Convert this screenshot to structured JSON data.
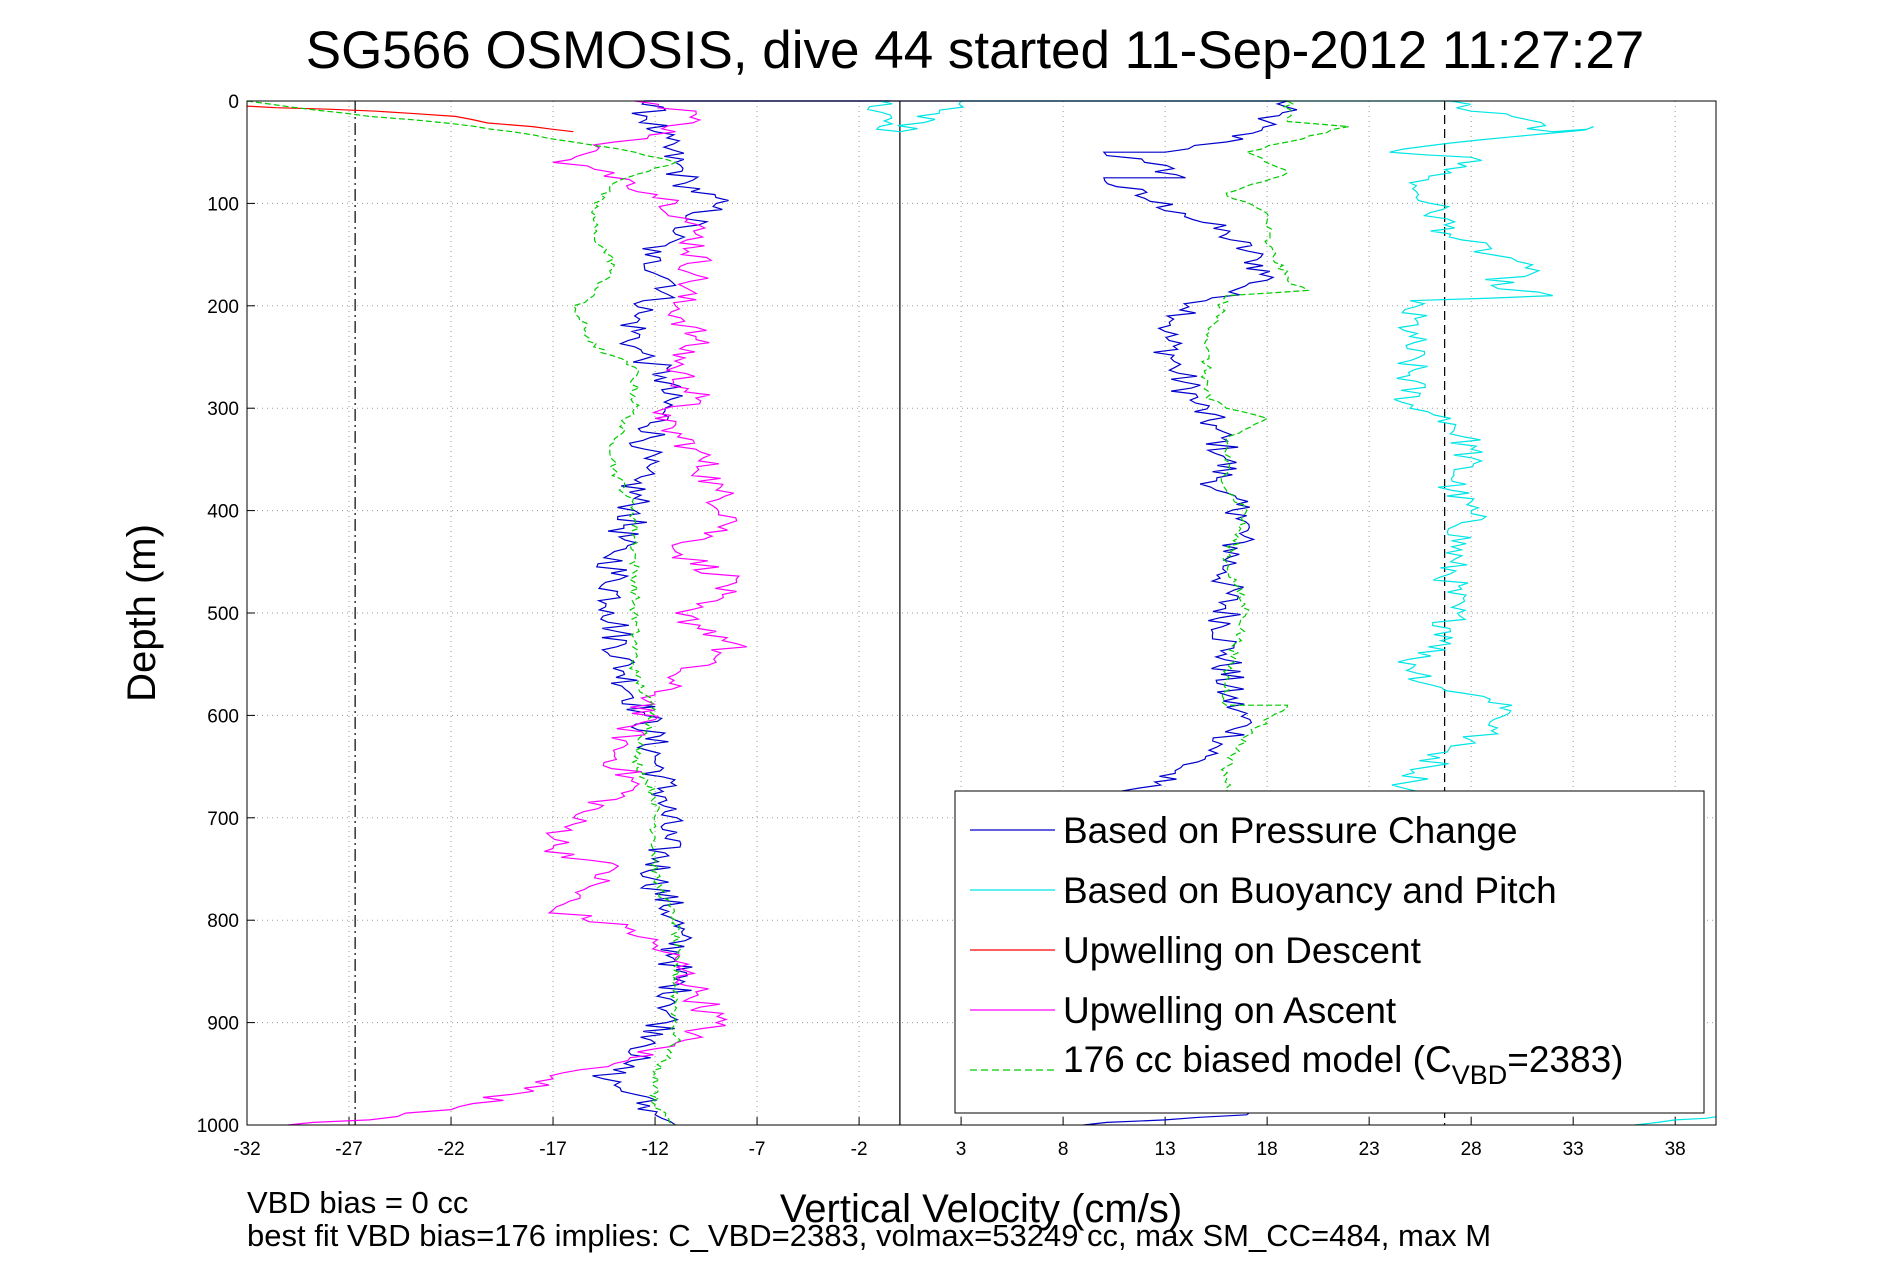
{
  "chart_data": {
    "type": "line",
    "title": "SG566 OSMOSIS, dive 44 started 11-Sep-2012 11:27:27",
    "xlabel": "Vertical Velocity (cm/s)",
    "ylabel": "Depth (m)",
    "xlim": [
      -32,
      40
    ],
    "ylim": [
      0,
      1000
    ],
    "y_reversed": true,
    "grid": true,
    "legend_position": "lower-right",
    "x_ticks": [
      "-32",
      "-27",
      "-22",
      "-17",
      "-12",
      "-7",
      "-2",
      "3",
      "8",
      "13",
      "18",
      "23",
      "28",
      "33",
      "38"
    ],
    "y_ticks": [
      "0",
      "100",
      "200",
      "300",
      "400",
      "500",
      "600",
      "700",
      "800",
      "900",
      "1000"
    ],
    "reference_lines": [
      {
        "x": -26.7,
        "style": "dash-dot",
        "color": "#000000"
      },
      {
        "x": 0,
        "style": "solid",
        "color": "#000000"
      },
      {
        "x": 26.7,
        "style": "dashed",
        "color": "#000000"
      }
    ],
    "series": [
      {
        "name": "Based on Pressure Change",
        "color": "#0000cc",
        "style": "solid",
        "points": [
          [
            -12.5,
            0
          ],
          [
            19,
            0
          ],
          [
            18,
            20
          ],
          [
            16,
            40
          ],
          [
            13,
            50
          ],
          [
            10,
            50
          ],
          [
            12,
            60
          ],
          [
            14,
            75
          ],
          [
            10,
            75
          ],
          [
            12,
            95
          ],
          [
            14,
            110
          ],
          [
            16,
            130
          ],
          [
            17.5,
            155
          ],
          [
            18,
            175
          ],
          [
            15,
            195
          ],
          [
            13,
            225
          ],
          [
            13.5,
            260
          ],
          [
            14.5,
            295
          ],
          [
            15.5,
            320
          ],
          [
            16,
            350
          ],
          [
            15.5,
            380
          ],
          [
            17,
            405
          ],
          [
            16,
            460
          ],
          [
            16,
            540
          ],
          [
            16,
            580
          ],
          [
            17,
            610
          ],
          [
            15,
            640
          ],
          [
            12.5,
            665
          ],
          [
            10,
            680
          ],
          [
            9,
            690
          ]
        ]
      },
      {
        "name": "Based on Pressure Change",
        "color": "#0000cc",
        "style": "solid",
        "points": [
          [
            -0.5,
            0
          ],
          [
            -12.5,
            0
          ],
          [
            -12,
            30
          ],
          [
            -11,
            60
          ],
          [
            -10.5,
            80
          ],
          [
            -9,
            100
          ],
          [
            -11,
            130
          ],
          [
            -12.5,
            150
          ],
          [
            -11,
            180
          ],
          [
            -13,
            210
          ],
          [
            -13,
            240
          ],
          [
            -11.5,
            270
          ],
          [
            -11.5,
            300
          ],
          [
            -12.5,
            340
          ],
          [
            -13,
            370
          ],
          [
            -13,
            400
          ],
          [
            -14,
            440
          ],
          [
            -14,
            500
          ],
          [
            -13.5,
            560
          ],
          [
            -12.5,
            600
          ],
          [
            -12,
            640
          ],
          [
            -11.5,
            680
          ],
          [
            -11.5,
            720
          ],
          [
            -12,
            760
          ],
          [
            -11,
            800
          ],
          [
            -11,
            840
          ],
          [
            -11,
            880
          ],
          [
            -12,
            920
          ],
          [
            -13.5,
            940
          ],
          [
            -14.5,
            955
          ],
          [
            -13,
            970
          ],
          [
            -12,
            990
          ],
          [
            -11,
            1000
          ]
        ]
      },
      {
        "name": "",
        "color": "#0000cc",
        "style": "solid",
        "points": [
          [
            9,
            1000
          ],
          [
            13,
            995
          ],
          [
            17,
            990
          ],
          [
            18,
            985
          ]
        ]
      },
      {
        "name": "Based on Buoyancy and Pitch",
        "color": "#00e5e5",
        "style": "solid",
        "points": [
          [
            -1,
            0
          ],
          [
            -1,
            25
          ],
          [
            0,
            30
          ],
          [
            3,
            0
          ],
          [
            27,
            0
          ],
          [
            28,
            10
          ],
          [
            30,
            15
          ],
          [
            32,
            30
          ],
          [
            34,
            25
          ],
          [
            30,
            35
          ],
          [
            24,
            50
          ],
          [
            28,
            55
          ],
          [
            27,
            70
          ],
          [
            25,
            80
          ],
          [
            26,
            100
          ],
          [
            27,
            130
          ],
          [
            29,
            150
          ],
          [
            31,
            160
          ],
          [
            29,
            180
          ],
          [
            32,
            190
          ],
          [
            25,
            195
          ],
          [
            25,
            230
          ],
          [
            25,
            300
          ],
          [
            27,
            310
          ],
          [
            28,
            340
          ],
          [
            27,
            380
          ],
          [
            28,
            400
          ],
          [
            27,
            450
          ],
          [
            27,
            530
          ],
          [
            25,
            545
          ],
          [
            26,
            570
          ],
          [
            30,
            590
          ],
          [
            29,
            615
          ],
          [
            27,
            630
          ],
          [
            26,
            650
          ],
          [
            25,
            665
          ],
          [
            25,
            680
          ]
        ]
      },
      {
        "name": "",
        "color": "#00e5e5",
        "style": "solid",
        "points": [
          [
            36,
            1000
          ],
          [
            38,
            995
          ],
          [
            40,
            992
          ]
        ]
      },
      {
        "name": "Upwelling on Descent",
        "color": "#ff0000",
        "style": "solid",
        "points": [
          [
            -32,
            5
          ],
          [
            -28,
            8
          ],
          [
            -24,
            12
          ],
          [
            -21,
            18
          ],
          [
            -18,
            25
          ],
          [
            -16,
            30
          ]
        ]
      },
      {
        "name": "Upwelling on Ascent",
        "color": "#ff00ff",
        "style": "solid",
        "points": [
          [
            -13,
            0
          ],
          [
            -10,
            10
          ],
          [
            -11,
            30
          ],
          [
            -14,
            40
          ],
          [
            -17,
            60
          ],
          [
            -14,
            70
          ],
          [
            -13,
            80
          ],
          [
            -11,
            100
          ],
          [
            -10,
            130
          ],
          [
            -10,
            170
          ],
          [
            -11,
            200
          ],
          [
            -10,
            230
          ],
          [
            -11,
            260
          ],
          [
            -10,
            290
          ],
          [
            -12,
            310
          ],
          [
            -10,
            340
          ],
          [
            -9,
            380
          ],
          [
            -8,
            410
          ],
          [
            -11,
            440
          ],
          [
            -8,
            470
          ],
          [
            -11,
            500
          ],
          [
            -8,
            530
          ],
          [
            -11,
            560
          ],
          [
            -12,
            580
          ],
          [
            -13,
            610
          ],
          [
            -14,
            640
          ],
          [
            -13,
            670
          ],
          [
            -16,
            700
          ],
          [
            -17,
            730
          ],
          [
            -14,
            750
          ],
          [
            -17,
            790
          ],
          [
            -13,
            810
          ],
          [
            -11,
            840
          ],
          [
            -10,
            870
          ],
          [
            -9,
            900
          ],
          [
            -11,
            920
          ],
          [
            -14,
            940
          ],
          [
            -17,
            955
          ],
          [
            -19,
            970
          ],
          [
            -22,
            985
          ],
          [
            -26,
            995
          ],
          [
            -30,
            1000
          ]
        ]
      },
      {
        "name": "176 cc biased model (C_VBD=2383)",
        "color": "#00cc00",
        "style": "dashed",
        "points": [
          [
            -32,
            0
          ],
          [
            -26,
            15
          ],
          [
            -22,
            22
          ],
          [
            -19,
            30
          ],
          [
            -16,
            40
          ],
          [
            -13,
            50
          ],
          [
            -11,
            60
          ],
          [
            -14,
            80
          ],
          [
            -15,
            100
          ],
          [
            -15,
            130
          ],
          [
            -14,
            160
          ],
          [
            -15,
            190
          ],
          [
            -16,
            200
          ],
          [
            -15,
            240
          ],
          [
            -13,
            260
          ],
          [
            -13,
            300
          ],
          [
            -14,
            330
          ],
          [
            -14,
            360
          ],
          [
            -13,
            400
          ],
          [
            -13,
            440
          ],
          [
            -13,
            500
          ],
          [
            -13,
            560
          ],
          [
            -12,
            600
          ],
          [
            -13,
            640
          ],
          [
            -12,
            680
          ],
          [
            -12,
            720
          ],
          [
            -12,
            760
          ],
          [
            -11,
            800
          ],
          [
            -11,
            840
          ],
          [
            -11,
            880
          ],
          [
            -11,
            920
          ],
          [
            -12,
            950
          ],
          [
            -12,
            980
          ],
          [
            -11,
            1000
          ]
        ]
      },
      {
        "name": "",
        "color": "#00cc00",
        "style": "dashed",
        "points": [
          [
            19,
            0
          ],
          [
            19,
            20
          ],
          [
            22,
            25
          ],
          [
            19,
            40
          ],
          [
            17,
            50
          ],
          [
            19,
            70
          ],
          [
            16,
            90
          ],
          [
            18,
            110
          ],
          [
            18,
            140
          ],
          [
            19,
            175
          ],
          [
            20,
            185
          ],
          [
            16,
            190
          ],
          [
            15,
            240
          ],
          [
            15,
            290
          ],
          [
            16,
            300
          ],
          [
            18,
            310
          ],
          [
            16,
            330
          ],
          [
            16,
            380
          ],
          [
            17,
            400
          ],
          [
            16,
            450
          ],
          [
            17,
            500
          ],
          [
            16,
            560
          ],
          [
            16,
            590
          ],
          [
            19,
            590
          ],
          [
            17,
            620
          ],
          [
            16,
            650
          ],
          [
            16,
            680
          ]
        ]
      }
    ],
    "legend": [
      {
        "label": "Based on Pressure Change",
        "color": "#0000cc",
        "style": "solid"
      },
      {
        "label": "Based on Buoyancy and Pitch",
        "color": "#00e5e5",
        "style": "solid"
      },
      {
        "label": "Upwelling on Descent",
        "color": "#ff0000",
        "style": "solid"
      },
      {
        "label": "Upwelling on Ascent",
        "color": "#ff00ff",
        "style": "solid"
      },
      {
        "label_main": "176 cc biased model (C",
        "label_sub": "VBD",
        "label_tail": "=2383)",
        "color": "#00cc00",
        "style": "dashed"
      }
    ],
    "annotations": {
      "line1": "VBD bias = 0 cc",
      "line2": "best fit VBD bias=176 implies: C_VBD=2383, volmax=53249 cc, max SM_CC=484, max M"
    }
  }
}
